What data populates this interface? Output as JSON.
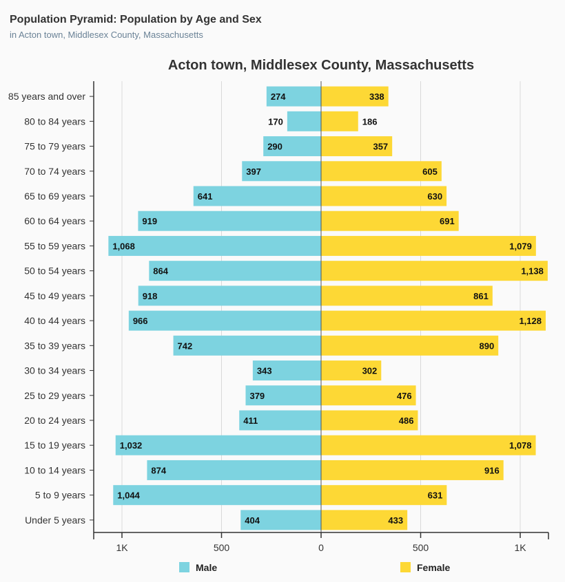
{
  "header": {
    "title": "Population Pyramid: Population by Age and Sex",
    "subtitle": "in Acton town, Middlesex County, Massachusetts"
  },
  "colors": {
    "male": "#7dd3e0",
    "female": "#fdd835",
    "grid": "#d9d9d9",
    "axis": "#333333"
  },
  "chart_data": {
    "type": "bar",
    "orientation": "horizontal-pyramid",
    "title": "Acton town, Middlesex County, Massachusetts",
    "categories": [
      "85 years and over",
      "80 to 84 years",
      "75 to 79 years",
      "70 to 74 years",
      "65 to 69 years",
      "60 to 64 years",
      "55 to 59 years",
      "50 to 54 years",
      "45 to 49 years",
      "40 to 44 years",
      "35 to 39 years",
      "30 to 34 years",
      "25 to 29 years",
      "20 to 24 years",
      "15 to 19 years",
      "10 to 14 years",
      "5 to 9 years",
      "Under 5 years"
    ],
    "series": [
      {
        "name": "Male",
        "values": [
          274,
          170,
          290,
          397,
          641,
          919,
          1068,
          864,
          918,
          966,
          742,
          343,
          379,
          411,
          1032,
          874,
          1044,
          404
        ],
        "labels": [
          "274",
          "170",
          "290",
          "397",
          "641",
          "919",
          "1,068",
          "864",
          "918",
          "966",
          "742",
          "343",
          "379",
          "411",
          "1,032",
          "874",
          "1,044",
          "404"
        ]
      },
      {
        "name": "Female",
        "values": [
          338,
          186,
          357,
          605,
          630,
          691,
          1079,
          1138,
          861,
          1128,
          890,
          302,
          476,
          486,
          1078,
          916,
          631,
          433
        ],
        "labels": [
          "338",
          "186",
          "357",
          "605",
          "630",
          "691",
          "1,079",
          "1,138",
          "861",
          "1,128",
          "890",
          "302",
          "476",
          "486",
          "1,078",
          "916",
          "631",
          "433"
        ]
      }
    ],
    "xlim": [
      -1150,
      1150
    ],
    "ticks": [
      {
        "value": -1000,
        "label": "1K"
      },
      {
        "value": -500,
        "label": "500"
      },
      {
        "value": 0,
        "label": "0"
      },
      {
        "value": 500,
        "label": "500"
      },
      {
        "value": 1000,
        "label": "1K"
      }
    ],
    "legend": [
      "Male",
      "Female"
    ],
    "legend_position": "bottom"
  }
}
